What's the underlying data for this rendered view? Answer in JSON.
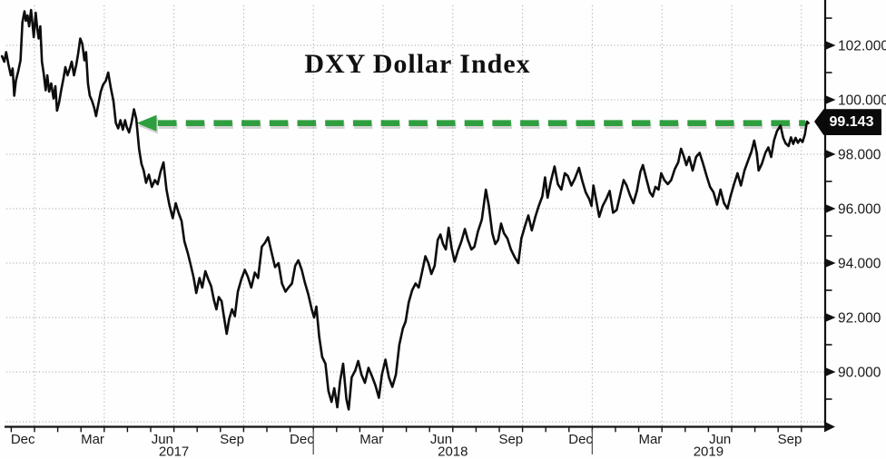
{
  "title": "DXY Dollar Index",
  "annotation": {
    "label": "99.143",
    "level": 99.143,
    "type": "horizontal-dashed-arrow-left",
    "color": "#2f9e3f"
  },
  "colors": {
    "line": "#0d0d0d",
    "grid": "#999999",
    "axis": "#111111",
    "label": "#1a1a1a",
    "annotation_green": "#2f9e3f",
    "annotation_shadow": "#a0a0a0",
    "badge_bg": "#0a0a0a",
    "badge_text": "#ffffff",
    "background": "#fefefe"
  },
  "chart_data": {
    "type": "line",
    "title": "DXY Dollar Index",
    "x_unit": "months since 2016-12-01",
    "ylim": [
      88.2,
      103.4
    ],
    "grid": "dotted",
    "y_axis_side": "right",
    "last_price": 99.143,
    "y_major_ticks": [
      {
        "v": 102,
        "label": "102.000"
      },
      {
        "v": 100,
        "label": "100.000"
      },
      {
        "v": 98,
        "label": "98.000"
      },
      {
        "v": 96,
        "label": "96.000"
      },
      {
        "v": 94,
        "label": "94.000"
      },
      {
        "v": 92,
        "label": "92.000"
      },
      {
        "v": 90,
        "label": "90.000"
      }
    ],
    "y_minor_ticks": [
      103,
      101,
      99,
      97,
      95,
      93,
      91,
      89
    ],
    "grid_x_months": [
      1,
      4,
      7,
      10,
      13,
      16,
      19,
      22,
      25,
      28,
      31,
      34
    ],
    "x_month_labels": [
      {
        "m": 0,
        "label": "Dec"
      },
      {
        "m": 3,
        "label": "Mar"
      },
      {
        "m": 6,
        "label": "Jun"
      },
      {
        "m": 9,
        "label": "Sep"
      },
      {
        "m": 12,
        "label": "Dec"
      },
      {
        "m": 15,
        "label": "Mar"
      },
      {
        "m": 18,
        "label": "Jun"
      },
      {
        "m": 21,
        "label": "Sep"
      },
      {
        "m": 24,
        "label": "Dec"
      },
      {
        "m": 27,
        "label": "Mar"
      },
      {
        "m": 30,
        "label": "Jun"
      },
      {
        "m": 33,
        "label": "Sep"
      }
    ],
    "year_labels": [
      {
        "label": "2017",
        "center_m": 7
      },
      {
        "label": "2018",
        "center_m": 19
      },
      {
        "label": "2019",
        "center_m": 30
      }
    ],
    "year_separator_months": [
      13,
      25
    ],
    "series": [
      {
        "name": "DXY",
        "points": [
          [
            -0.4,
            101.6
          ],
          [
            -0.3,
            101.4
          ],
          [
            -0.22,
            101.75
          ],
          [
            -0.12,
            101.3
          ],
          [
            -0.02,
            100.9
          ],
          [
            0.06,
            101.15
          ],
          [
            0.13,
            100.15
          ],
          [
            0.2,
            100.7
          ],
          [
            0.3,
            101.05
          ],
          [
            0.4,
            101.45
          ],
          [
            0.48,
            102.85
          ],
          [
            0.57,
            103.25
          ],
          [
            0.63,
            102.9
          ],
          [
            0.7,
            103.1
          ],
          [
            0.77,
            102.7
          ],
          [
            0.85,
            103.3
          ],
          [
            0.93,
            102.65
          ],
          [
            0.97,
            102.3
          ],
          [
            1.05,
            103.2
          ],
          [
            1.12,
            102.6
          ],
          [
            1.18,
            102.25
          ],
          [
            1.25,
            102.7
          ],
          [
            1.32,
            101.4
          ],
          [
            1.4,
            100.95
          ],
          [
            1.48,
            100.35
          ],
          [
            1.55,
            100.9
          ],
          [
            1.63,
            100.3
          ],
          [
            1.72,
            100.6
          ],
          [
            1.82,
            100.05
          ],
          [
            1.9,
            100.5
          ],
          [
            1.97,
            99.6
          ],
          [
            2.06,
            99.9
          ],
          [
            2.15,
            100.35
          ],
          [
            2.25,
            100.8
          ],
          [
            2.33,
            101.2
          ],
          [
            2.42,
            100.9
          ],
          [
            2.52,
            101.15
          ],
          [
            2.6,
            101.4
          ],
          [
            2.7,
            100.9
          ],
          [
            2.8,
            101.3
          ],
          [
            2.88,
            101.7
          ],
          [
            2.97,
            102.25
          ],
          [
            3.06,
            102.05
          ],
          [
            3.15,
            101.45
          ],
          [
            3.22,
            101.75
          ],
          [
            3.3,
            100.6
          ],
          [
            3.38,
            100.15
          ],
          [
            3.48,
            99.95
          ],
          [
            3.57,
            99.7
          ],
          [
            3.65,
            99.4
          ],
          [
            3.75,
            99.85
          ],
          [
            3.85,
            100.3
          ],
          [
            3.95,
            100.55
          ],
          [
            4.07,
            100.7
          ],
          [
            4.17,
            101.0
          ],
          [
            4.28,
            100.45
          ],
          [
            4.4,
            99.95
          ],
          [
            4.5,
            99.15
          ],
          [
            4.6,
            98.95
          ],
          [
            4.7,
            99.25
          ],
          [
            4.8,
            98.9
          ],
          [
            4.9,
            99.25
          ],
          [
            4.97,
            99.0
          ],
          [
            5.07,
            98.8
          ],
          [
            5.17,
            99.15
          ],
          [
            5.28,
            99.65
          ],
          [
            5.38,
            99.3
          ],
          [
            5.5,
            98.2
          ],
          [
            5.6,
            97.65
          ],
          [
            5.7,
            97.4
          ],
          [
            5.8,
            96.95
          ],
          [
            5.92,
            97.25
          ],
          [
            6.05,
            96.8
          ],
          [
            6.18,
            97.05
          ],
          [
            6.3,
            96.9
          ],
          [
            6.42,
            97.35
          ],
          [
            6.55,
            97.7
          ],
          [
            6.68,
            96.7
          ],
          [
            6.8,
            96.15
          ],
          [
            6.95,
            95.65
          ],
          [
            7.08,
            96.2
          ],
          [
            7.2,
            95.85
          ],
          [
            7.33,
            95.55
          ],
          [
            7.45,
            94.8
          ],
          [
            7.6,
            94.35
          ],
          [
            7.73,
            93.9
          ],
          [
            7.85,
            93.45
          ],
          [
            7.96,
            92.9
          ],
          [
            8.1,
            93.45
          ],
          [
            8.22,
            93.1
          ],
          [
            8.35,
            93.7
          ],
          [
            8.48,
            93.4
          ],
          [
            8.6,
            93.15
          ],
          [
            8.72,
            92.65
          ],
          [
            8.83,
            92.3
          ],
          [
            8.93,
            92.75
          ],
          [
            9.05,
            92.6
          ],
          [
            9.15,
            92.05
          ],
          [
            9.27,
            91.4
          ],
          [
            9.38,
            91.95
          ],
          [
            9.5,
            92.3
          ],
          [
            9.62,
            92.05
          ],
          [
            9.75,
            92.95
          ],
          [
            9.9,
            93.4
          ],
          [
            10.05,
            93.75
          ],
          [
            10.18,
            93.5
          ],
          [
            10.33,
            93.1
          ],
          [
            10.48,
            93.65
          ],
          [
            10.62,
            93.45
          ],
          [
            10.78,
            94.6
          ],
          [
            10.92,
            94.75
          ],
          [
            11.05,
            94.95
          ],
          [
            11.2,
            94.4
          ],
          [
            11.35,
            93.85
          ],
          [
            11.5,
            94.0
          ],
          [
            11.65,
            93.25
          ],
          [
            11.8,
            92.95
          ],
          [
            11.93,
            93.1
          ],
          [
            12.08,
            93.25
          ],
          [
            12.22,
            93.9
          ],
          [
            12.35,
            94.1
          ],
          [
            12.5,
            93.75
          ],
          [
            12.63,
            93.3
          ],
          [
            12.78,
            92.85
          ],
          [
            12.93,
            92.3
          ],
          [
            13.03,
            92.0
          ],
          [
            13.13,
            92.4
          ],
          [
            13.25,
            91.3
          ],
          [
            13.38,
            90.55
          ],
          [
            13.52,
            90.3
          ],
          [
            13.65,
            89.3
          ],
          [
            13.78,
            88.9
          ],
          [
            13.9,
            89.4
          ],
          [
            14.03,
            88.7
          ],
          [
            14.15,
            89.65
          ],
          [
            14.28,
            90.3
          ],
          [
            14.42,
            89.0
          ],
          [
            14.52,
            88.62
          ],
          [
            14.65,
            89.8
          ],
          [
            14.8,
            90.05
          ],
          [
            14.93,
            90.4
          ],
          [
            15.07,
            89.9
          ],
          [
            15.22,
            89.6
          ],
          [
            15.37,
            90.15
          ],
          [
            15.52,
            89.85
          ],
          [
            15.67,
            89.5
          ],
          [
            15.82,
            89.05
          ],
          [
            15.95,
            89.9
          ],
          [
            16.1,
            90.45
          ],
          [
            16.25,
            89.8
          ],
          [
            16.4,
            89.45
          ],
          [
            16.55,
            89.9
          ],
          [
            16.7,
            91.0
          ],
          [
            16.85,
            91.6
          ],
          [
            16.97,
            91.85
          ],
          [
            17.1,
            92.55
          ],
          [
            17.25,
            93.0
          ],
          [
            17.4,
            93.25
          ],
          [
            17.53,
            93.1
          ],
          [
            17.67,
            93.65
          ],
          [
            17.82,
            94.25
          ],
          [
            17.95,
            94.0
          ],
          [
            18.08,
            93.6
          ],
          [
            18.22,
            93.9
          ],
          [
            18.35,
            94.85
          ],
          [
            18.47,
            95.05
          ],
          [
            18.58,
            94.7
          ],
          [
            18.7,
            94.5
          ],
          [
            18.82,
            95.3
          ],
          [
            18.95,
            94.55
          ],
          [
            19.08,
            94.05
          ],
          [
            19.22,
            94.45
          ],
          [
            19.37,
            94.8
          ],
          [
            19.52,
            95.25
          ],
          [
            19.65,
            94.85
          ],
          [
            19.8,
            94.5
          ],
          [
            19.93,
            94.6
          ],
          [
            20.08,
            95.15
          ],
          [
            20.25,
            95.6
          ],
          [
            20.42,
            96.7
          ],
          [
            20.55,
            96.1
          ],
          [
            20.7,
            95.1
          ],
          [
            20.83,
            94.7
          ],
          [
            20.95,
            94.85
          ],
          [
            21.08,
            95.45
          ],
          [
            21.2,
            95.1
          ],
          [
            21.35,
            94.9
          ],
          [
            21.5,
            94.5
          ],
          [
            21.67,
            94.2
          ],
          [
            21.82,
            94.0
          ],
          [
            21.95,
            94.9
          ],
          [
            22.1,
            95.35
          ],
          [
            22.25,
            95.75
          ],
          [
            22.4,
            95.2
          ],
          [
            22.55,
            95.7
          ],
          [
            22.7,
            96.1
          ],
          [
            22.85,
            96.45
          ],
          [
            22.97,
            97.15
          ],
          [
            23.08,
            96.4
          ],
          [
            23.22,
            97.0
          ],
          [
            23.38,
            97.55
          ],
          [
            23.52,
            96.9
          ],
          [
            23.67,
            96.7
          ],
          [
            23.82,
            97.3
          ],
          [
            23.95,
            97.2
          ],
          [
            24.1,
            96.85
          ],
          [
            24.25,
            97.1
          ],
          [
            24.43,
            97.5
          ],
          [
            24.58,
            97.0
          ],
          [
            24.72,
            96.6
          ],
          [
            24.87,
            96.35
          ],
          [
            24.97,
            96.1
          ],
          [
            25.05,
            96.85
          ],
          [
            25.17,
            96.3
          ],
          [
            25.3,
            95.7
          ],
          [
            25.45,
            96.1
          ],
          [
            25.6,
            96.35
          ],
          [
            25.75,
            96.65
          ],
          [
            25.9,
            95.85
          ],
          [
            26.05,
            95.95
          ],
          [
            26.2,
            96.5
          ],
          [
            26.35,
            97.05
          ],
          [
            26.48,
            96.85
          ],
          [
            26.62,
            96.5
          ],
          [
            26.77,
            96.2
          ],
          [
            26.92,
            96.65
          ],
          [
            27.07,
            97.35
          ],
          [
            27.18,
            97.6
          ],
          [
            27.33,
            97.1
          ],
          [
            27.48,
            96.6
          ],
          [
            27.6,
            96.45
          ],
          [
            27.72,
            96.8
          ],
          [
            27.85,
            96.7
          ],
          [
            27.97,
            97.3
          ],
          [
            28.1,
            97.05
          ],
          [
            28.25,
            96.9
          ],
          [
            28.4,
            97.05
          ],
          [
            28.55,
            97.45
          ],
          [
            28.7,
            97.7
          ],
          [
            28.82,
            98.2
          ],
          [
            28.93,
            97.95
          ],
          [
            29.05,
            97.6
          ],
          [
            29.17,
            97.9
          ],
          [
            29.32,
            97.4
          ],
          [
            29.47,
            97.9
          ],
          [
            29.62,
            98.05
          ],
          [
            29.77,
            97.65
          ],
          [
            29.92,
            97.2
          ],
          [
            30.07,
            96.8
          ],
          [
            30.22,
            96.6
          ],
          [
            30.37,
            96.15
          ],
          [
            30.52,
            96.7
          ],
          [
            30.67,
            96.2
          ],
          [
            30.82,
            96.0
          ],
          [
            30.95,
            96.45
          ],
          [
            31.1,
            96.9
          ],
          [
            31.25,
            97.3
          ],
          [
            31.4,
            96.85
          ],
          [
            31.55,
            97.4
          ],
          [
            31.7,
            97.75
          ],
          [
            31.85,
            98.1
          ],
          [
            31.97,
            98.5
          ],
          [
            32.08,
            98.05
          ],
          [
            32.16,
            97.4
          ],
          [
            32.3,
            97.65
          ],
          [
            32.45,
            98.05
          ],
          [
            32.58,
            98.25
          ],
          [
            32.7,
            97.9
          ],
          [
            32.82,
            98.5
          ],
          [
            32.95,
            98.85
          ],
          [
            33.1,
            99.05
          ],
          [
            33.22,
            98.6
          ],
          [
            33.32,
            98.4
          ],
          [
            33.45,
            98.3
          ],
          [
            33.55,
            98.62
          ],
          [
            33.65,
            98.38
          ],
          [
            33.75,
            98.6
          ],
          [
            33.85,
            98.42
          ],
          [
            33.95,
            98.55
          ],
          [
            34.05,
            98.45
          ],
          [
            34.15,
            98.72
          ],
          [
            34.24,
            99.2
          ],
          [
            34.3,
            99.143
          ]
        ]
      }
    ]
  }
}
